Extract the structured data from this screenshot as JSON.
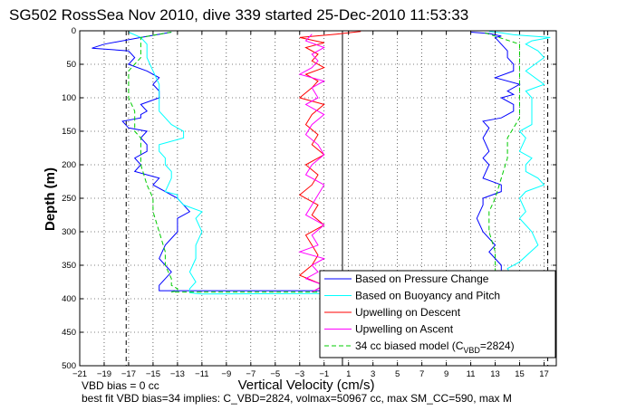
{
  "chart_data": {
    "type": "line",
    "title": "SG502 RossSea Nov 2010, dive 339 started 25-Dec-2010 11:53:33",
    "xlabel": "Vertical Velocity (cm/s)",
    "ylabel": "Depth (m)",
    "xlim": [
      -21,
      18
    ],
    "ylim": [
      0,
      500
    ],
    "y_reversed": true,
    "grid": true,
    "xticks": [
      -21,
      -19,
      -17,
      -15,
      -13,
      -11,
      -9,
      -7,
      -5,
      -3,
      -1,
      1,
      3,
      5,
      7,
      9,
      11,
      13,
      15,
      17
    ],
    "yticks": [
      0,
      50,
      100,
      150,
      200,
      250,
      300,
      350,
      400,
      450,
      500
    ],
    "xtick_labels": [
      "−21",
      "−19",
      "−17",
      "−15",
      "−13",
      "−11",
      "−9",
      "−7",
      "−5",
      "−3",
      "−1",
      "1",
      "3",
      "5",
      "7",
      "9",
      "11",
      "13",
      "15",
      "17"
    ],
    "ytick_labels": [
      "0",
      "50",
      "100",
      "150",
      "200",
      "250",
      "300",
      "350",
      "400",
      "450",
      "500"
    ],
    "legend_position": "bottom-right",
    "vertical_lines": [
      {
        "x": -17.2,
        "style": "dashed",
        "color": "#000000"
      },
      {
        "x": 17.3,
        "style": "dashed",
        "color": "#000000"
      },
      {
        "x": 0.5,
        "style": "solid",
        "color": "#000000"
      }
    ],
    "series": [
      {
        "name": "Based on Pressure Change",
        "color": "#0000ff",
        "x": [
          -13.5,
          -16,
          -19,
          -20,
          -17,
          -16.5,
          -17,
          -15.5,
          -14.5,
          -15,
          -14.5,
          -14.5,
          -16,
          -15.5,
          -16,
          -16,
          -17.5,
          -17,
          -15.5,
          -16,
          -15.5,
          -15.5,
          -16.5,
          -16,
          -16.5,
          -14.5,
          -15,
          -13,
          -12.5,
          -12,
          -13,
          -13,
          -14,
          -14.5,
          -13.5,
          -14.5,
          -14.5,
          14.5,
          14.5,
          13.5,
          13.5,
          12.5,
          13,
          12,
          11.5,
          12,
          12,
          13.5,
          13.5,
          12,
          12.5,
          12,
          12.5,
          12,
          12.5,
          12,
          13.5,
          14.5,
          14.5,
          13.5,
          14.5,
          14,
          15,
          13,
          14.5,
          14.5,
          14,
          14,
          13.5,
          13,
          13.5,
          12.5,
          11
        ],
        "y": [
          2,
          10,
          20,
          26,
          30,
          40,
          50,
          60,
          70,
          80,
          90,
          100,
          110,
          120,
          125,
          130,
          135,
          145,
          150,
          160,
          170,
          180,
          190,
          200,
          210,
          220,
          230,
          250,
          260,
          270,
          280,
          300,
          320,
          340,
          360,
          380,
          388,
          388,
          380,
          360,
          350,
          330,
          320,
          300,
          280,
          260,
          250,
          240,
          230,
          220,
          200,
          190,
          180,
          160,
          145,
          135,
          130,
          120,
          110,
          100,
          95,
          90,
          80,
          70,
          60,
          50,
          40,
          30,
          20,
          10,
          8,
          4,
          2
        ]
      },
      {
        "name": "Based on Buoyancy and Pitch",
        "color": "#00ffff",
        "x": [
          -17,
          -16,
          -15.5,
          -15.5,
          -15,
          -14.5,
          -14.5,
          -14.5,
          -13.5,
          -13,
          -12.5,
          -12.5,
          -14.5,
          -14.5,
          -14,
          -14,
          -13.5,
          -13.5,
          -14,
          -13,
          -13,
          -12.5,
          -11,
          -11.5,
          -11,
          -11.5,
          -11.5,
          -12,
          -11.5,
          -12,
          -12,
          -12,
          -12,
          -12,
          -11.5,
          -11,
          2,
          13.5,
          14.5,
          14.5,
          14,
          15,
          16.5,
          16,
          15,
          15.5,
          15,
          15.5,
          17,
          16.5,
          15.5,
          15.5,
          16,
          15,
          15.5,
          15,
          16,
          16,
          16,
          15.5,
          17,
          15.5,
          17,
          16.5,
          15.5,
          16,
          17.5,
          14.5,
          13.5,
          12.5
        ],
        "y": [
          2,
          10,
          20,
          40,
          60,
          80,
          100,
          120,
          140,
          145,
          150,
          160,
          170,
          180,
          190,
          200,
          210,
          220,
          240,
          245,
          250,
          260,
          270,
          280,
          300,
          320,
          340,
          360,
          375,
          385,
          389,
          390,
          390,
          391,
          392,
          393,
          392,
          392,
          385,
          370,
          355,
          345,
          320,
          300,
          280,
          270,
          250,
          240,
          230,
          220,
          210,
          200,
          190,
          180,
          160,
          150,
          140,
          120,
          100,
          90,
          80,
          60,
          40,
          30,
          20,
          15,
          10,
          6,
          3,
          1
        ]
      },
      {
        "name": "Upwelling on Descent",
        "color": "#ff0000",
        "x": [
          2,
          0,
          -3,
          -1,
          -2.5,
          -1.5,
          -2,
          -1,
          -2.5,
          -1.5,
          -2,
          -3,
          -1,
          -2,
          -2.5,
          -1.5,
          -2,
          -1,
          -2.5,
          -1.5,
          -2,
          -3,
          -1.5,
          -2,
          -1,
          -2.5,
          -2,
          -1.5,
          -2,
          -3,
          -1,
          -2
        ],
        "y": [
          1,
          5,
          10,
          18,
          25,
          35,
          45,
          55,
          65,
          75,
          85,
          100,
          110,
          125,
          140,
          155,
          170,
          185,
          200,
          215,
          230,
          245,
          260,
          275,
          290,
          305,
          320,
          335,
          350,
          365,
          380,
          390
        ]
      },
      {
        "name": "Upwelling on Ascent",
        "color": "#ff00ff",
        "x": [
          -2,
          -1,
          -2.5,
          -1.5,
          -2,
          -1,
          -3,
          -1.5,
          -2,
          -1,
          -2.5,
          -2,
          -1.5,
          -1,
          -2.5,
          -2,
          -1,
          -1.5,
          -2.5,
          -2,
          -1,
          -2.5,
          -1.5,
          -2,
          -1,
          -3,
          -2,
          -1.5,
          -2,
          -1,
          -2.5,
          -2
        ],
        "y": [
          390,
          380,
          370,
          360,
          350,
          340,
          330,
          320,
          305,
          290,
          275,
          260,
          245,
          230,
          215,
          200,
          185,
          170,
          155,
          140,
          125,
          110,
          100,
          85,
          75,
          65,
          55,
          45,
          35,
          25,
          15,
          5
        ]
      },
      {
        "name": "34 cc biased model (C_VBD=2824)",
        "color": "#00cc00",
        "style": "dashed",
        "x": [
          -13.5,
          -16,
          -16,
          -17,
          -17,
          -16.5,
          -16.5,
          -16,
          -16,
          -15.5,
          -15,
          -15,
          -14.5,
          -14,
          -14,
          -13.5,
          -13.5,
          -13,
          -13,
          -13.5,
          13.5,
          13,
          13,
          13,
          12.5,
          12.5,
          13,
          13.5,
          14,
          14,
          15,
          15,
          15,
          15,
          12
        ],
        "y": [
          2,
          10,
          40,
          60,
          100,
          120,
          150,
          160,
          200,
          230,
          250,
          270,
          300,
          330,
          350,
          370,
          380,
          385,
          388,
          390,
          390,
          380,
          360,
          330,
          300,
          270,
          250,
          220,
          190,
          160,
          130,
          100,
          60,
          20,
          2
        ]
      }
    ],
    "legend_label_parts": {
      "prefix": "34 cc biased model (C",
      "subscript": "VBD",
      "suffix": "=2824)"
    },
    "annotations": [
      "VBD bias = 0 cc",
      "best fit VBD bias=34 implies: C_VBD=2824, volmax=50967 cc, max SM_CC=590, max M"
    ]
  }
}
